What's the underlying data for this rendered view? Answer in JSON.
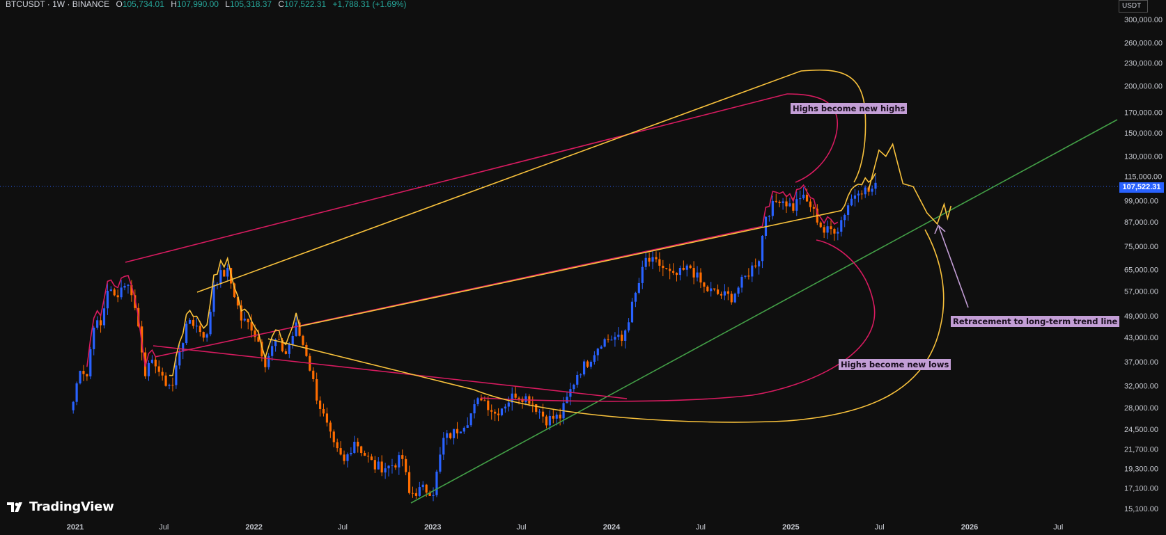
{
  "header": {
    "symbol": "BTCUSDT · 1W · BINANCE",
    "open_label": "O",
    "open": "105,734.01",
    "high_label": "H",
    "high": "107,990.00",
    "low_label": "L",
    "low": "105,318.37",
    "close_label": "C",
    "close": "107,522.31",
    "change": "+1,788.31 (+1.69%)"
  },
  "unit": "USDT",
  "last_price": "107,522.31",
  "annotations": {
    "highs_new_highs": "Highs become new highs",
    "highs_new_lows": "Highs become new lows",
    "retracement": "Retracement to long-term trend line"
  },
  "branding": {
    "name": "TradingView"
  },
  "colors": {
    "background": "#0f0f0f",
    "candle_up": "#2962ff",
    "candle_down": "#ff6d00",
    "curve_yellow": "#f9c23c",
    "curve_pink": "#d81b60",
    "trend_line": "#43a047",
    "last_price_line": "#2962ff",
    "note_bg": "#c39ed6"
  },
  "chart_data": {
    "type": "line",
    "scale": "log",
    "y_ticks": [
      "300,000.00",
      "260,000.00",
      "230,000.00",
      "200,000.00",
      "170,000.00",
      "150,000.00",
      "130,000.00",
      "115,000.00",
      "99,000.00",
      "87,000.00",
      "75,000.00",
      "65,000.00",
      "57,000.00",
      "49,000.00",
      "43,000.00",
      "37,000.00",
      "32,000.00",
      "28,000.00",
      "24,500.00",
      "21,700.00",
      "19,300.00",
      "17,100.00",
      "15,100.00"
    ],
    "y_tick_values": [
      300000,
      260000,
      230000,
      200000,
      170000,
      150000,
      130000,
      115000,
      99000,
      87000,
      75000,
      65000,
      57000,
      49000,
      43000,
      37000,
      32000,
      28000,
      24500,
      21700,
      19300,
      17100,
      15100
    ],
    "x_ticks": [
      "2021",
      "Jul",
      "2022",
      "Jul",
      "2023",
      "Jul",
      "2024",
      "Jul",
      "2025",
      "Jul",
      "2026",
      "Jul"
    ],
    "x_tick_values": [
      "2021-01",
      "2021-07",
      "2022-01",
      "2022-07",
      "2023-01",
      "2023-07",
      "2024-01",
      "2024-07",
      "2025-01",
      "2025-07",
      "2026-01",
      "2026-07"
    ],
    "series": [
      {
        "values_close": [
          [
            "2020-12-28",
            29000
          ],
          [
            "2021-01-11",
            36000
          ],
          [
            "2021-01-25",
            34000
          ],
          [
            "2021-02-08",
            47000
          ],
          [
            "2021-02-22",
            46000
          ],
          [
            "2021-03-08",
            58000
          ],
          [
            "2021-03-22",
            55000
          ],
          [
            "2021-04-12",
            60000
          ],
          [
            "2021-04-26",
            57000
          ],
          [
            "2021-05-10",
            46000
          ],
          [
            "2021-05-24",
            35000
          ],
          [
            "2021-06-14",
            37000
          ],
          [
            "2021-06-28",
            33000
          ],
          [
            "2021-07-19",
            32000
          ],
          [
            "2021-08-02",
            40000
          ],
          [
            "2021-08-23",
            48000
          ],
          [
            "2021-09-06",
            46000
          ],
          [
            "2021-09-27",
            43000
          ],
          [
            "2021-10-11",
            60000
          ],
          [
            "2021-10-25",
            63000
          ],
          [
            "2021-11-08",
            64000
          ],
          [
            "2021-11-22",
            56000
          ],
          [
            "2021-12-06",
            48000
          ],
          [
            "2021-12-27",
            46000
          ],
          [
            "2022-01-10",
            42000
          ],
          [
            "2022-01-24",
            37000
          ],
          [
            "2022-02-14",
            42000
          ],
          [
            "2022-03-07",
            39000
          ],
          [
            "2022-03-28",
            46000
          ],
          [
            "2022-04-18",
            39000
          ],
          [
            "2022-05-09",
            30000
          ],
          [
            "2022-06-13",
            22000
          ],
          [
            "2022-07-04",
            20000
          ],
          [
            "2022-07-25",
            23000
          ],
          [
            "2022-08-15",
            21000
          ],
          [
            "2022-09-05",
            19500
          ],
          [
            "2022-10-03",
            19500
          ],
          [
            "2022-10-31",
            20500
          ],
          [
            "2022-11-14",
            16500
          ],
          [
            "2022-12-12",
            17000
          ],
          [
            "2023-01-02",
            16800
          ],
          [
            "2023-01-23",
            23000
          ],
          [
            "2023-02-13",
            24000
          ],
          [
            "2023-03-13",
            26000
          ],
          [
            "2023-04-10",
            30000
          ],
          [
            "2023-05-08",
            27000
          ],
          [
            "2023-06-19",
            30500
          ],
          [
            "2023-07-17",
            29500
          ],
          [
            "2023-08-21",
            26000
          ],
          [
            "2023-09-18",
            26500
          ],
          [
            "2023-10-23",
            34500
          ],
          [
            "2023-11-13",
            37000
          ],
          [
            "2023-12-11",
            42000
          ],
          [
            "2024-01-08",
            43000
          ],
          [
            "2024-01-22",
            42000
          ],
          [
            "2024-02-12",
            52000
          ],
          [
            "2024-03-11",
            69000
          ],
          [
            "2024-04-08",
            67000
          ],
          [
            "2024-05-06",
            62000
          ],
          [
            "2024-06-10",
            66000
          ],
          [
            "2024-07-08",
            58000
          ],
          [
            "2024-08-05",
            56000
          ],
          [
            "2024-09-02",
            55000
          ],
          [
            "2024-09-30",
            62000
          ],
          [
            "2024-10-28",
            70000
          ],
          [
            "2024-11-11",
            91000
          ],
          [
            "2024-12-09",
            101000
          ],
          [
            "2025-01-06",
            95000
          ],
          [
            "2025-01-20",
            102000
          ],
          [
            "2025-02-10",
            96000
          ],
          [
            "2025-03-10",
            82000
          ],
          [
            "2025-04-07",
            84000
          ],
          [
            "2025-04-28",
            97000
          ],
          [
            "2025-05-19",
            107000
          ],
          [
            "2025-06-09",
            105000
          ],
          [
            "2025-06-23",
            107522
          ]
        ]
      },
      {
        "name": "",
        "note": "projected path",
        "values": [
          [
            "2025-06-09",
            106000
          ],
          [
            "2025-06-30",
            135000
          ],
          [
            "2025-07-14",
            130000
          ],
          [
            "2025-07-28",
            140000
          ],
          [
            "2025-08-18",
            110000
          ],
          [
            "2025-09-08",
            108000
          ],
          [
            "2025-10-06",
            92000
          ],
          [
            "2025-10-27",
            86000
          ],
          [
            "2025-11-10",
            97000
          ],
          [
            "2025-11-17",
            89000
          ],
          [
            "2025-11-24",
            96000
          ]
        ]
      }
    ],
    "ylim": [
      14500,
      310000
    ],
    "xlim": [
      "2020-11-01",
      "2026-10-01"
    ],
    "grid": false,
    "legend": "none",
    "title": "",
    "xlabel": "",
    "ylabel": ""
  }
}
